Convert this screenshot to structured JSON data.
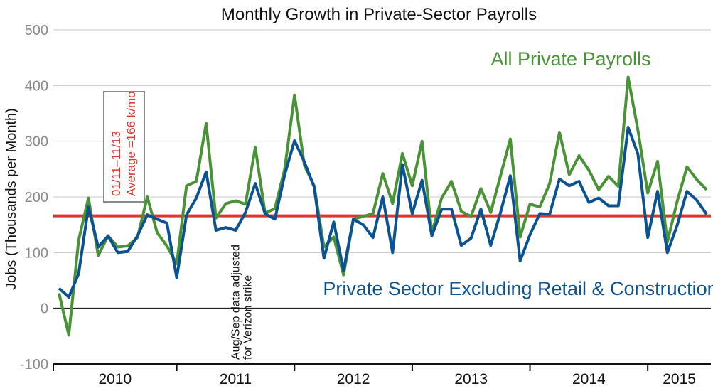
{
  "chart_data": {
    "type": "line",
    "title": "Monthly Growth in Private-Sector Payrolls",
    "ylabel": "Jobs (Thousands per Month)",
    "xlabel": "",
    "ylim": [
      -100,
      500
    ],
    "yticks": [
      -100,
      0,
      100,
      200,
      300,
      400,
      500
    ],
    "ytick_labels": [
      "-100",
      "0",
      "100",
      "200",
      "300",
      "400",
      "500"
    ],
    "year_labels": [
      "2010",
      "2011",
      "2012",
      "2013",
      "2014",
      "2015"
    ],
    "x_range": [
      0,
      70
    ],
    "reference_line": {
      "value": 166,
      "color": "#d9382b"
    },
    "annotation_box": {
      "line1": "01/11–11/13",
      "line2": "Average =166 k/mo"
    },
    "annotation_note": {
      "line1": "Aug/Sep data adjusted",
      "line2": "for Verizon strike",
      "x_month": 18.5
    },
    "series": [
      {
        "name": "All Private Payrolls",
        "color": "#4a9236",
        "values": [
          27,
          -48,
          122,
          198,
          95,
          130,
          110,
          112,
          127,
          200,
          136,
          112,
          80,
          220,
          228,
          332,
          162,
          188,
          193,
          187,
          289,
          171,
          179,
          250,
          383,
          257,
          220,
          110,
          128,
          60,
          160,
          165,
          170,
          242,
          188,
          278,
          220,
          300,
          135,
          198,
          228,
          174,
          165,
          215,
          172,
          238,
          304,
          128,
          187,
          182,
          224,
          316,
          240,
          274,
          248,
          213,
          237,
          219,
          415,
          320,
          207,
          264,
          119,
          192,
          254,
          231,
          213
        ]
      },
      {
        "name": "Private Sector Excluding Retail & Construction",
        "color": "#0b5293",
        "values": [
          36,
          20,
          62,
          182,
          110,
          130,
          100,
          102,
          130,
          168,
          160,
          153,
          55,
          168,
          198,
          245,
          140,
          145,
          140,
          172,
          224,
          170,
          160,
          240,
          301,
          263,
          218,
          90,
          155,
          68,
          160,
          150,
          127,
          200,
          100,
          258,
          170,
          230,
          130,
          178,
          178,
          113,
          126,
          178,
          113,
          172,
          238,
          85,
          132,
          170,
          169,
          232,
          220,
          228,
          190,
          198,
          184,
          184,
          325,
          277,
          127,
          210,
          100,
          149,
          210,
          194,
          169
        ]
      }
    ],
    "series_labels": {
      "green": "All Private Payrolls",
      "blue": "Private Sector Excluding Retail & Construction"
    }
  }
}
